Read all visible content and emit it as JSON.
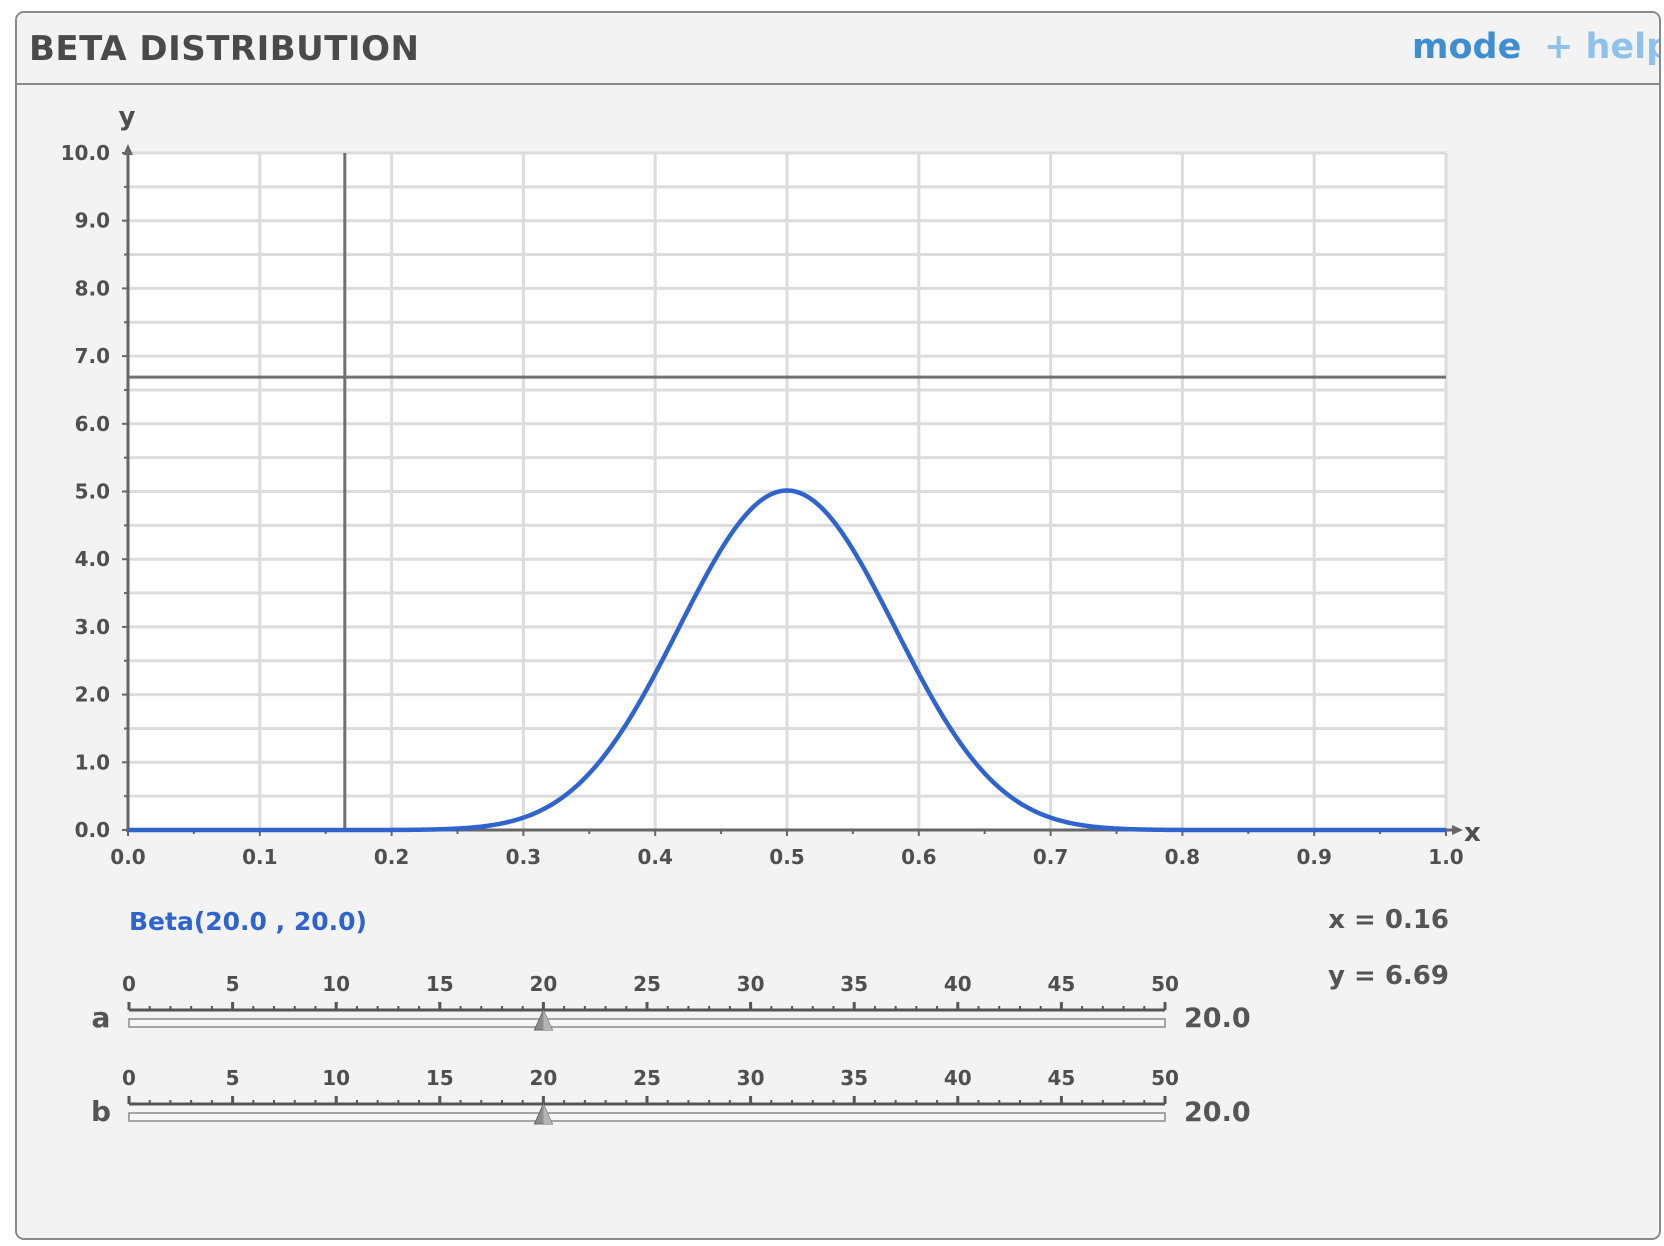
{
  "header": {
    "title": "BETA DISTRIBUTION",
    "mode_label": "mode",
    "help_label": "+ help"
  },
  "chart_data": {
    "type": "line",
    "xlabel": "x",
    "ylabel": "y",
    "xlim": [
      0.0,
      1.0
    ],
    "ylim": [
      0.0,
      10.0
    ],
    "x_ticks": [
      "0.0",
      "0.1",
      "0.2",
      "0.3",
      "0.4",
      "0.5",
      "0.6",
      "0.7",
      "0.8",
      "0.9",
      "1.0"
    ],
    "y_ticks": [
      "0.0",
      "1.0",
      "2.0",
      "3.0",
      "4.0",
      "5.0",
      "6.0",
      "7.0",
      "8.0",
      "9.0",
      "10.0"
    ],
    "grid": true,
    "series": [
      {
        "name": "Beta(20.0 , 20.0)",
        "color": "#2f64cf",
        "distribution": "beta",
        "a": 20.0,
        "b": 20.0
      }
    ],
    "crosshair": {
      "x": 0.16,
      "y": 6.69
    }
  },
  "readout": {
    "x_text": "x = 0.16",
    "y_text": "y = 6.69"
  },
  "sliders": [
    {
      "name": "a",
      "value": 20.0,
      "value_text": "20.0",
      "min": 0,
      "max": 50,
      "tick_labels": [
        "0",
        "5",
        "10",
        "15",
        "20",
        "25",
        "30",
        "35",
        "40",
        "45",
        "50"
      ]
    },
    {
      "name": "b",
      "value": 20.0,
      "value_text": "20.0",
      "min": 0,
      "max": 50,
      "tick_labels": [
        "0",
        "5",
        "10",
        "15",
        "20",
        "25",
        "30",
        "35",
        "40",
        "45",
        "50"
      ]
    }
  ]
}
